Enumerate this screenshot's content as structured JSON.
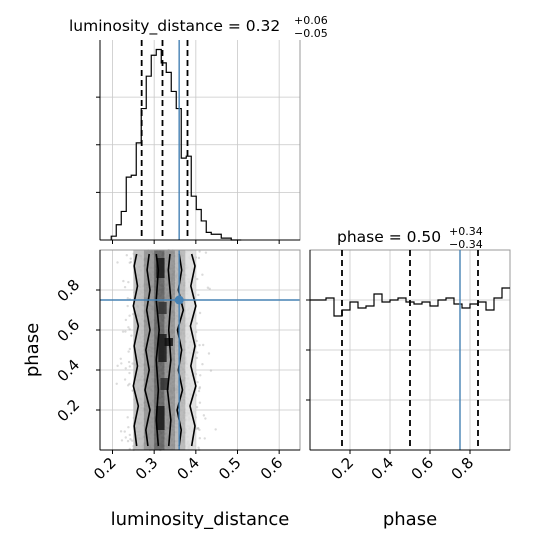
{
  "chart_data": {
    "type": "corner",
    "truth_color": "#4682b4",
    "params": [
      "luminosity_distance",
      "phase"
    ],
    "truths": {
      "luminosity_distance": 0.36,
      "phase": 0.75
    },
    "titles": {
      "luminosity_distance": {
        "main": "luminosity_distance = 0.32",
        "sup": "+0.06",
        "sub": "−0.05"
      },
      "phase": {
        "main": "phase = 0.50",
        "sup": "+0.34",
        "sub": "−0.34"
      }
    },
    "axis_labels": {
      "x_left": "luminosity_distance",
      "x_right": "phase",
      "y_lower": "phase"
    },
    "luminosity_distance_hist": {
      "range": [
        0.17,
        0.65
      ],
      "ylim": [
        0,
        1
      ],
      "edges": [
        0.197,
        0.209,
        0.221,
        0.233,
        0.245,
        0.257,
        0.269,
        0.281,
        0.293,
        0.305,
        0.317,
        0.329,
        0.341,
        0.353,
        0.365,
        0.377,
        0.389,
        0.401,
        0.413,
        0.425,
        0.437,
        0.449,
        0.461,
        0.473,
        0.485,
        0.497,
        0.509
      ],
      "values": [
        0.02,
        0.08,
        0.15,
        0.33,
        0.34,
        0.51,
        0.69,
        0.86,
        0.97,
        1.0,
        0.93,
        0.88,
        0.78,
        0.69,
        0.43,
        0.44,
        0.23,
        0.16,
        0.1,
        0.04,
        0.03,
        0.03,
        0.01,
        0.01,
        0.0,
        0.0
      ],
      "quantiles": [
        0.27,
        0.32,
        0.38
      ],
      "xticks": [
        0.2,
        0.3,
        0.4,
        0.5,
        0.6
      ]
    },
    "phase_hist": {
      "range": [
        0.0,
        1.0
      ],
      "ylim": [
        0,
        1
      ],
      "edges": [
        0.0,
        0.04,
        0.08,
        0.12,
        0.16,
        0.2,
        0.24,
        0.28,
        0.32,
        0.36,
        0.4,
        0.44,
        0.48,
        0.52,
        0.56,
        0.6,
        0.64,
        0.68,
        0.72,
        0.76,
        0.8,
        0.84,
        0.88,
        0.92,
        0.96,
        1.0
      ],
      "values": [
        0.75,
        0.75,
        0.76,
        0.67,
        0.7,
        0.74,
        0.71,
        0.72,
        0.78,
        0.74,
        0.75,
        0.76,
        0.74,
        0.73,
        0.74,
        0.72,
        0.75,
        0.76,
        0.73,
        0.71,
        0.73,
        0.74,
        0.7,
        0.76,
        0.81
      ],
      "quantiles": [
        0.16,
        0.5,
        0.84
      ],
      "xticks": [
        0.2,
        0.4,
        0.6,
        0.8
      ],
      "ytick_values": [
        0.25,
        0.5,
        0.75
      ]
    },
    "scatter_2d": {
      "xrange": [
        0.17,
        0.65
      ],
      "yrange": [
        0.0,
        1.0
      ],
      "yticks": [
        0.2,
        0.4,
        0.6,
        0.8
      ],
      "density_cells": [
        {
          "x0": 0.25,
          "x1": 0.275,
          "y0": 0.0,
          "y1": 1.0,
          "shade": "#b8b8b8"
        },
        {
          "x0": 0.275,
          "x1": 0.3,
          "y0": 0.0,
          "y1": 1.0,
          "shade": "#8a8a8a"
        },
        {
          "x0": 0.3,
          "x1": 0.325,
          "y0": 0.0,
          "y1": 1.0,
          "shade": "#555555"
        },
        {
          "x0": 0.325,
          "x1": 0.35,
          "y0": 0.0,
          "y1": 1.0,
          "shade": "#888888"
        },
        {
          "x0": 0.35,
          "x1": 0.375,
          "y0": 0.0,
          "y1": 1.0,
          "shade": "#b0b0b0"
        },
        {
          "x0": 0.375,
          "x1": 0.4,
          "y0": 0.0,
          "y1": 1.0,
          "shade": "#dddddd"
        },
        {
          "x0": 0.305,
          "x1": 0.325,
          "y0": 0.86,
          "y1": 0.96,
          "shade": "#1a1a1a"
        },
        {
          "x0": 0.31,
          "x1": 0.33,
          "y0": 0.44,
          "y1": 0.58,
          "shade": "#1a1a1a"
        },
        {
          "x0": 0.305,
          "x1": 0.325,
          "y0": 0.1,
          "y1": 0.22,
          "shade": "#1a1a1a"
        },
        {
          "x0": 0.325,
          "x1": 0.345,
          "y0": 0.52,
          "y1": 0.56,
          "shade": "#111111"
        },
        {
          "x0": 0.31,
          "x1": 0.33,
          "y0": 0.68,
          "y1": 0.74,
          "shade": "#333333"
        },
        {
          "x0": 0.315,
          "x1": 0.335,
          "y0": 0.3,
          "y1": 0.36,
          "shade": "#333333"
        }
      ],
      "contours": [
        [
          [
            0.31,
            0.02
          ],
          [
            0.305,
            0.15
          ],
          [
            0.31,
            0.3
          ],
          [
            0.305,
            0.45
          ],
          [
            0.312,
            0.6
          ],
          [
            0.305,
            0.75
          ],
          [
            0.31,
            0.9
          ],
          [
            0.305,
            0.98
          ]
        ],
        [
          [
            0.335,
            0.02
          ],
          [
            0.34,
            0.15
          ],
          [
            0.332,
            0.3
          ],
          [
            0.34,
            0.45
          ],
          [
            0.335,
            0.6
          ],
          [
            0.34,
            0.75
          ],
          [
            0.334,
            0.9
          ],
          [
            0.338,
            0.98
          ]
        ],
        [
          [
            0.285,
            0.02
          ],
          [
            0.28,
            0.1
          ],
          [
            0.29,
            0.2
          ],
          [
            0.278,
            0.3
          ],
          [
            0.288,
            0.4
          ],
          [
            0.28,
            0.5
          ],
          [
            0.29,
            0.6
          ],
          [
            0.282,
            0.7
          ],
          [
            0.29,
            0.8
          ],
          [
            0.283,
            0.9
          ],
          [
            0.288,
            0.98
          ]
        ],
        [
          [
            0.36,
            0.02
          ],
          [
            0.365,
            0.1
          ],
          [
            0.355,
            0.2
          ],
          [
            0.368,
            0.3
          ],
          [
            0.358,
            0.4
          ],
          [
            0.366,
            0.5
          ],
          [
            0.356,
            0.6
          ],
          [
            0.37,
            0.7
          ],
          [
            0.358,
            0.8
          ],
          [
            0.366,
            0.9
          ],
          [
            0.36,
            0.98
          ]
        ],
        [
          [
            0.258,
            0.02
          ],
          [
            0.252,
            0.12
          ],
          [
            0.262,
            0.22
          ],
          [
            0.25,
            0.32
          ],
          [
            0.26,
            0.42
          ],
          [
            0.252,
            0.52
          ],
          [
            0.262,
            0.62
          ],
          [
            0.25,
            0.72
          ],
          [
            0.26,
            0.82
          ],
          [
            0.252,
            0.92
          ],
          [
            0.258,
            0.98
          ]
        ],
        [
          [
            0.39,
            0.02
          ],
          [
            0.398,
            0.12
          ],
          [
            0.386,
            0.22
          ],
          [
            0.4,
            0.32
          ],
          [
            0.388,
            0.42
          ],
          [
            0.398,
            0.52
          ],
          [
            0.387,
            0.62
          ],
          [
            0.4,
            0.72
          ],
          [
            0.388,
            0.82
          ],
          [
            0.398,
            0.92
          ],
          [
            0.39,
            0.98
          ]
        ]
      ]
    }
  }
}
